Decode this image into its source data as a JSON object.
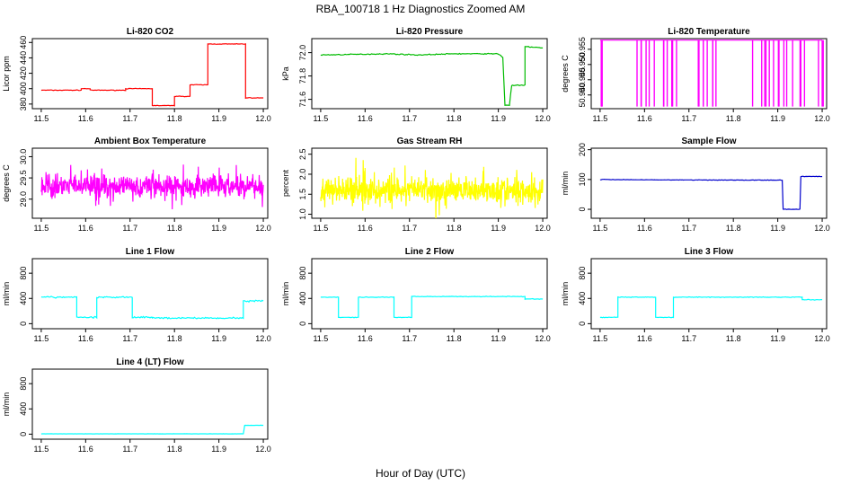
{
  "figure": {
    "title": "RBA_100718  1 Hz Diagnostics Zoomed AM",
    "xlabel": "Hour of Day (UTC)"
  },
  "chart_data": [
    {
      "type": "line",
      "title": "Li-820 CO2",
      "ylabel": "Licor ppm",
      "color": "#ff0000",
      "xlim": [
        11.48,
        12.01
      ],
      "ylim": [
        374,
        465
      ],
      "xticks": [
        "11.5",
        "11.6",
        "11.7",
        "11.8",
        "11.9",
        "12.0"
      ],
      "yticks": [
        "380",
        "400",
        "420",
        "440",
        "460"
      ],
      "x": [
        11.5,
        11.59,
        11.59,
        11.61,
        11.61,
        11.69,
        11.69,
        11.75,
        11.75,
        11.8,
        11.8,
        11.835,
        11.835,
        11.875,
        11.875,
        11.96,
        11.96,
        12.0
      ],
      "y": [
        398,
        398,
        400,
        400,
        398,
        398,
        400,
        400,
        378,
        378,
        390,
        390,
        405,
        405,
        458,
        458,
        388,
        388
      ],
      "noise": 0.6
    },
    {
      "type": "line",
      "title": "Li-820 Pressure",
      "ylabel": "kPa",
      "color": "#00bb00",
      "xlim": [
        11.48,
        12.01
      ],
      "ylim": [
        71.52,
        72.12
      ],
      "xticks": [
        "11.5",
        "11.6",
        "11.7",
        "11.8",
        "11.9",
        "12.0"
      ],
      "yticks": [
        "71.6",
        "71.8",
        "72.0"
      ],
      "x": [
        11.5,
        11.65,
        11.72,
        11.8,
        11.9,
        11.91,
        11.915,
        11.925,
        11.93,
        11.96,
        11.96,
        11.97,
        12.0
      ],
      "y": [
        71.98,
        71.99,
        71.98,
        71.99,
        71.99,
        71.96,
        71.55,
        71.55,
        71.72,
        71.72,
        72.05,
        72.05,
        72.04
      ],
      "noise": 0.006
    },
    {
      "type": "line",
      "title": "Li-820 Temperature",
      "ylabel": "degrees C",
      "color": "#ff00ff",
      "xlim": [
        11.48,
        12.01
      ],
      "ylim": [
        50.9355,
        50.9585
      ],
      "xticks": [
        "11.5",
        "11.6",
        "11.7",
        "11.8",
        "11.9",
        "12.0"
      ],
      "yticks": [
        "50.940",
        "50.945",
        "50.950",
        "50.955"
      ],
      "baseline": 50.958,
      "drop": 50.9362,
      "spikes": [
        11.5,
        11.501,
        11.5015,
        11.58,
        11.59,
        11.59,
        11.6,
        11.61,
        11.62,
        11.64,
        11.64,
        11.65,
        11.66,
        11.66,
        11.67,
        11.72,
        11.72,
        11.73,
        11.73,
        11.74,
        11.75,
        11.75,
        11.76,
        11.84,
        11.86,
        11.87,
        11.87,
        11.88,
        11.89,
        11.9,
        11.9,
        11.91,
        11.92,
        11.93,
        11.95,
        11.95,
        11.96,
        11.99,
        12.0,
        12.0
      ],
      "type_note": ""
    },
    {
      "type": "line",
      "title": "Ambient Box Temperature",
      "ylabel": "degrees C",
      "color": "#ff00ff",
      "xlim": [
        11.48,
        12.01
      ],
      "ylim": [
        28.55,
        30.2
      ],
      "xticks": [
        "11.5",
        "11.6",
        "11.7",
        "11.8",
        "11.9",
        "12.0"
      ],
      "yticks": [
        "29.0",
        "29.5",
        "30.0"
      ],
      "mean": 29.3,
      "noise": 0.35
    },
    {
      "type": "line",
      "title": "Gas Stream RH",
      "ylabel": "percent",
      "color": "#ffff00",
      "xlim": [
        11.48,
        12.01
      ],
      "ylim": [
        0.9,
        2.65
      ],
      "xticks": [
        "11.5",
        "11.6",
        "11.7",
        "11.8",
        "11.9",
        "12.0"
      ],
      "yticks": [
        "1.0",
        "1.5",
        "2.0",
        "2.5"
      ],
      "mean": 1.6,
      "noise": 0.45
    },
    {
      "type": "line",
      "title": "Sample Flow",
      "ylabel": "ml/min",
      "color": "#0000cc",
      "xlim": [
        11.48,
        12.01
      ],
      "ylim": [
        -30,
        205
      ],
      "xticks": [
        "11.5",
        "11.6",
        "11.7",
        "11.8",
        "11.9",
        "12.0"
      ],
      "yticks": [
        "0",
        "100",
        "200"
      ],
      "x": [
        11.5,
        11.6,
        11.8,
        11.91,
        11.912,
        11.95,
        11.952,
        12.0
      ],
      "y": [
        100,
        99,
        98,
        98,
        0,
        0,
        110,
        110
      ],
      "noise": 1.2
    },
    {
      "type": "line",
      "title": "Line 1 Flow",
      "ylabel": "ml/min",
      "color": "#00ffff",
      "xlim": [
        11.48,
        12.01
      ],
      "ylim": [
        -80,
        1030
      ],
      "xticks": [
        "11.5",
        "11.6",
        "11.7",
        "11.8",
        "11.9",
        "12.0"
      ],
      "yticks": [
        "0",
        "400",
        "800"
      ],
      "x": [
        11.5,
        11.58,
        11.58,
        11.625,
        11.625,
        11.705,
        11.705,
        11.75,
        11.75,
        11.955,
        11.955,
        12.0
      ],
      "y": [
        420,
        420,
        100,
        100,
        420,
        420,
        100,
        100,
        90,
        90,
        360,
        360
      ],
      "noise": 18
    },
    {
      "type": "line",
      "title": "Line 2 Flow",
      "ylabel": "ml/min",
      "color": "#00ffff",
      "xlim": [
        11.48,
        12.01
      ],
      "ylim": [
        -80,
        1030
      ],
      "xticks": [
        "11.5",
        "11.6",
        "11.7",
        "11.8",
        "11.9",
        "12.0"
      ],
      "yticks": [
        "0",
        "400",
        "800"
      ],
      "x": [
        11.5,
        11.54,
        11.54,
        11.585,
        11.585,
        11.665,
        11.665,
        11.705,
        11.705,
        11.96,
        11.96,
        12.0
      ],
      "y": [
        420,
        420,
        100,
        100,
        420,
        420,
        100,
        100,
        430,
        430,
        390,
        390
      ],
      "noise": 7
    },
    {
      "type": "line",
      "title": "Line 3 Flow",
      "ylabel": "ml/min",
      "color": "#00ffff",
      "xlim": [
        11.48,
        12.01
      ],
      "ylim": [
        -80,
        1030
      ],
      "xticks": [
        "11.5",
        "11.6",
        "11.7",
        "11.8",
        "11.9",
        "12.0"
      ],
      "yticks": [
        "0",
        "400",
        "800"
      ],
      "x": [
        11.5,
        11.54,
        11.54,
        11.625,
        11.625,
        11.665,
        11.665,
        11.955,
        11.955,
        12.0
      ],
      "y": [
        100,
        100,
        420,
        420,
        100,
        100,
        420,
        420,
        380,
        380
      ],
      "noise": 7
    },
    {
      "type": "line",
      "title": "Line 4 (LT) Flow",
      "ylabel": "ml/min",
      "color": "#00ffff",
      "xlim": [
        11.48,
        12.01
      ],
      "ylim": [
        -80,
        1030
      ],
      "xticks": [
        "11.5",
        "11.6",
        "11.7",
        "11.8",
        "11.9",
        "12.0"
      ],
      "yticks": [
        "0",
        "400",
        "800"
      ],
      "x": [
        11.5,
        11.955,
        11.958,
        12.0
      ],
      "y": [
        5,
        5,
        140,
        140
      ],
      "noise": 2
    }
  ]
}
